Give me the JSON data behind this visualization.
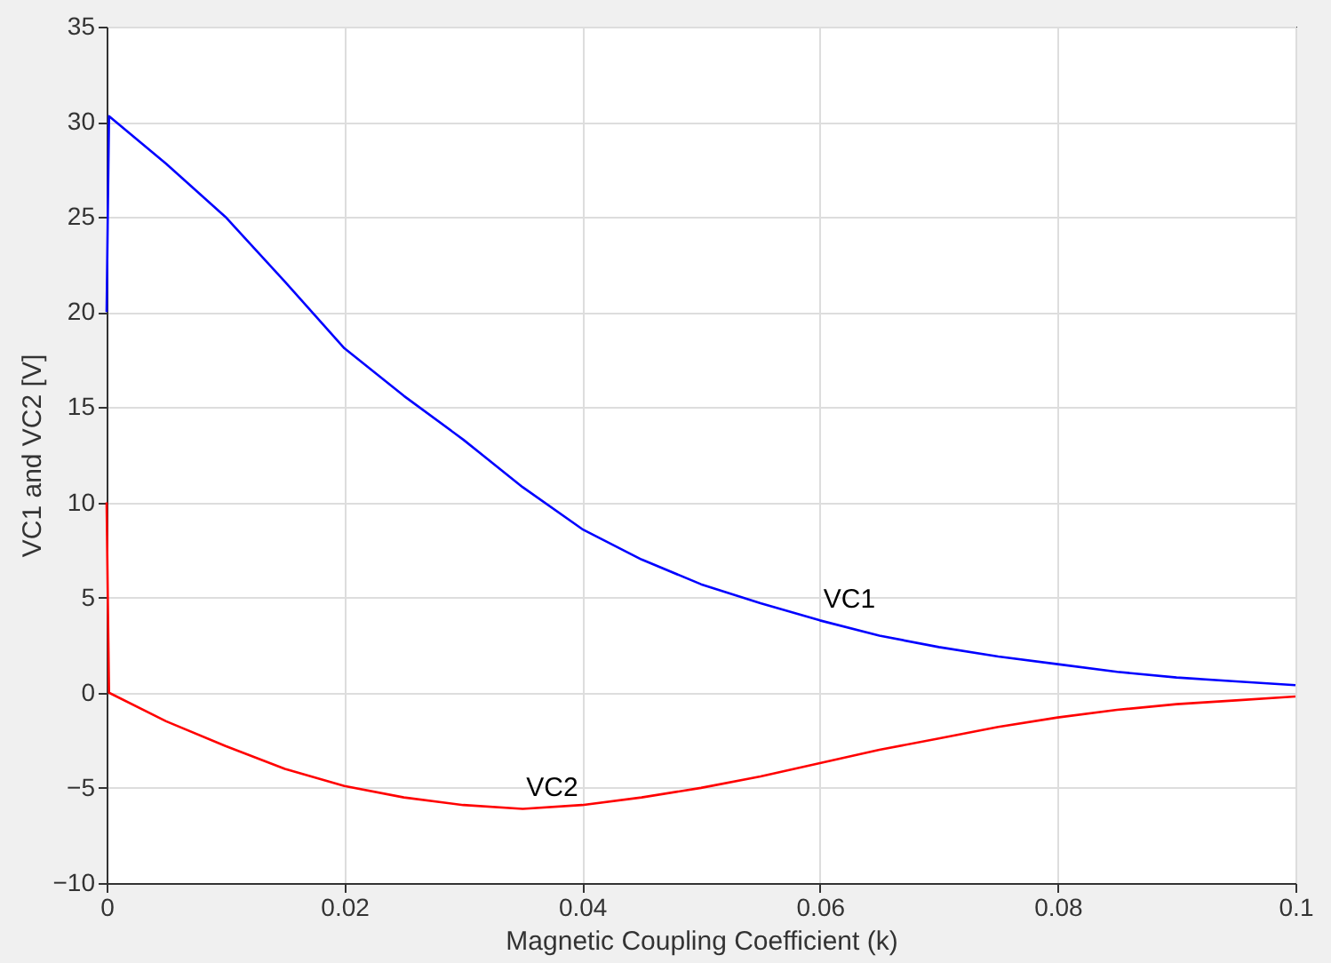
{
  "chart_data": {
    "type": "line",
    "xlabel": "Magnetic Coupling Coefficient (k)",
    "ylabel": "VC1 and VC2 [V]",
    "xlim": [
      0,
      0.1
    ],
    "ylim": [
      -10,
      35
    ],
    "xticks": [
      0,
      0.02,
      0.04,
      0.06,
      0.08,
      0.1
    ],
    "yticks": [
      -10,
      -5,
      0,
      5,
      10,
      15,
      20,
      25,
      30,
      35
    ],
    "grid": true,
    "marker": "none",
    "line_style": "solid",
    "series": [
      {
        "color": "#0000ff",
        "x": [
          0,
          0.0002,
          0.005,
          0.01,
          0.015,
          0.02,
          0.025,
          0.03,
          0.035,
          0.04,
          0.045,
          0.05,
          0.055,
          0.06,
          0.065,
          0.07,
          0.075,
          0.08,
          0.085,
          0.09,
          0.095,
          0.1
        ],
        "values": [
          20,
          30.3,
          27.8,
          25,
          21.6,
          18.1,
          15.6,
          13.3,
          10.8,
          8.6,
          7,
          5.7,
          4.7,
          3.8,
          3,
          2.4,
          1.9,
          1.5,
          1.1,
          0.8,
          0.6,
          0.4
        ]
      },
      {
        "color": "#ff0000",
        "x": [
          0,
          0.0002,
          0.005,
          0.01,
          0.015,
          0.02,
          0.025,
          0.03,
          0.035,
          0.04,
          0.045,
          0.05,
          0.055,
          0.06,
          0.065,
          0.07,
          0.075,
          0.08,
          0.085,
          0.09,
          0.095,
          0.1
        ],
        "values": [
          10,
          0,
          -1.5,
          -2.8,
          -4,
          -4.9,
          -5.5,
          -5.9,
          -6.1,
          -5.9,
          -5.5,
          -5,
          -4.4,
          -3.7,
          -3,
          -2.4,
          -1.8,
          -1.3,
          -0.9,
          -0.6,
          -0.4,
          -0.2
        ]
      }
    ],
    "annotations": [
      {
        "text": "VC1",
        "x": 0.06,
        "y": 3.8
      },
      {
        "text": "VC2",
        "x": 0.035,
        "y": -6.1
      }
    ]
  }
}
